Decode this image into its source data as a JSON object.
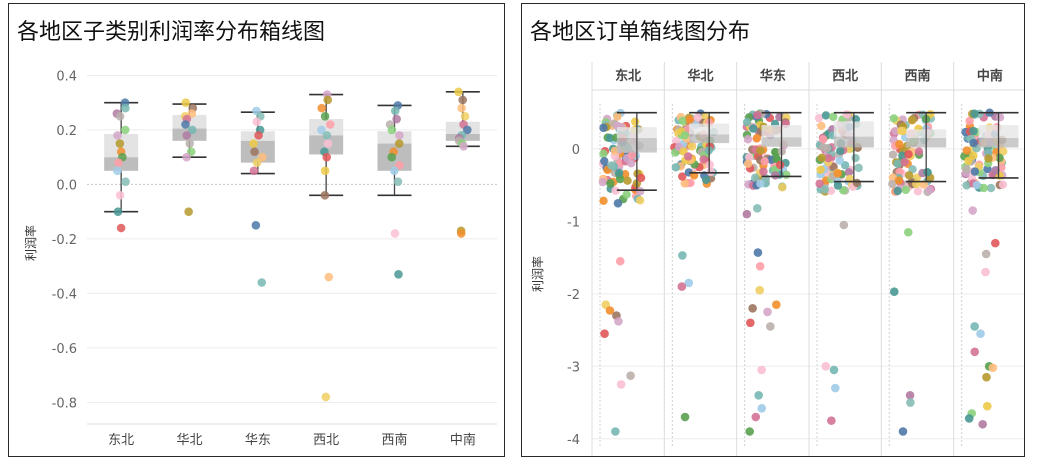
{
  "palette": [
    "#4e79a7",
    "#f28e2b",
    "#e15759",
    "#76b7b2",
    "#59a14f",
    "#edc948",
    "#b07aa1",
    "#ff9da7",
    "#9c755f",
    "#bab0ac",
    "#a0cbe8",
    "#ffbe7d",
    "#8cd17d",
    "#86bcb6",
    "#f1ce63",
    "#d4a6c8",
    "#fabfd2",
    "#d37295",
    "#b6992d",
    "#499894"
  ],
  "chart_data": [
    {
      "type": "box",
      "title": "各地区子类别利润率分布箱线图",
      "ylabel": "利润率",
      "xlabel": "",
      "ylim": [
        -0.85,
        0.42
      ],
      "yticks": [
        0.4,
        0.2,
        0.0,
        -0.2,
        -0.4,
        -0.6,
        -0.8
      ],
      "ytick_labels": [
        "0.4",
        "0.2",
        "0.0",
        "-0.2",
        "-0.4",
        "-0.6",
        "-0.8"
      ],
      "categories": [
        "东北",
        "华北",
        "华东",
        "西北",
        "西南",
        "中南"
      ],
      "boxes": [
        {
          "whisker_low": -0.1,
          "q1": 0.05,
          "median": 0.1,
          "q3": 0.185,
          "whisker_high": 0.3
        },
        {
          "whisker_low": 0.1,
          "q1": 0.16,
          "median": 0.205,
          "q3": 0.255,
          "whisker_high": 0.295
        },
        {
          "whisker_low": 0.04,
          "q1": 0.08,
          "median": 0.16,
          "q3": 0.195,
          "whisker_high": 0.265
        },
        {
          "whisker_low": -0.04,
          "q1": 0.11,
          "median": 0.18,
          "q3": 0.24,
          "whisker_high": 0.33
        },
        {
          "whisker_low": -0.04,
          "q1": 0.05,
          "median": 0.15,
          "q3": 0.195,
          "whisker_high": 0.29
        },
        {
          "whisker_low": 0.14,
          "q1": 0.16,
          "median": 0.185,
          "q3": 0.23,
          "whisker_high": 0.34
        }
      ],
      "points": [
        [
          0.3,
          0.28,
          0.26,
          0.25,
          0.2,
          0.18,
          0.15,
          0.12,
          0.1,
          0.08,
          0.05,
          0.01,
          -0.04,
          -0.1,
          -0.16
        ],
        [
          0.3,
          0.28,
          0.26,
          0.25,
          0.24,
          0.22,
          0.2,
          0.18,
          0.15,
          0.12,
          0.1,
          -0.1
        ],
        [
          0.27,
          0.25,
          0.23,
          0.2,
          0.18,
          0.15,
          0.12,
          0.1,
          0.08,
          0.05,
          -0.15,
          -0.36
        ],
        [
          0.33,
          0.31,
          0.28,
          0.25,
          0.22,
          0.2,
          0.18,
          0.15,
          0.12,
          0.1,
          0.05,
          -0.04,
          -0.34,
          -0.78
        ],
        [
          0.29,
          0.27,
          0.24,
          0.22,
          0.2,
          0.18,
          0.15,
          0.12,
          0.1,
          0.07,
          0.05,
          0.01,
          -0.18,
          -0.33
        ],
        [
          0.34,
          0.31,
          0.28,
          0.25,
          0.22,
          0.2,
          0.18,
          0.17,
          0.16,
          0.15,
          0.14,
          -0.17,
          -0.18
        ]
      ]
    },
    {
      "type": "box",
      "title": "各地区订单箱线图分布",
      "ylabel": "利润率",
      "xlabel": "",
      "ylim": [
        -4.1,
        0.62
      ],
      "yticks": [
        0,
        -1,
        -2,
        -3,
        -4
      ],
      "ytick_labels": [
        "0",
        "-1",
        "-2",
        "-3",
        "-4"
      ],
      "categories": [
        "东北",
        "华北",
        "华东",
        "西北",
        "西南",
        "中南"
      ],
      "boxes": [
        {
          "whisker_low": -0.57,
          "q1": -0.05,
          "median": 0.15,
          "q3": 0.3,
          "whisker_high": 0.5
        },
        {
          "whisker_low": -0.33,
          "q1": 0.08,
          "median": 0.2,
          "q3": 0.35,
          "whisker_high": 0.5
        },
        {
          "whisker_low": -0.38,
          "q1": 0.03,
          "median": 0.16,
          "q3": 0.33,
          "whisker_high": 0.5
        },
        {
          "whisker_low": -0.45,
          "q1": 0.02,
          "median": 0.17,
          "q3": 0.38,
          "whisker_high": 0.5
        },
        {
          "whisker_low": -0.45,
          "q1": 0.02,
          "median": 0.15,
          "q3": 0.27,
          "whisker_high": 0.5
        },
        {
          "whisker_low": -0.4,
          "q1": 0.02,
          "median": 0.15,
          "q3": 0.33,
          "whisker_high": 0.5
        }
      ],
      "outliers": [
        [
          -0.75,
          -1.55,
          -2.15,
          -2.23,
          -2.3,
          -2.38,
          -2.55,
          -3.13,
          -3.25,
          -3.9
        ],
        [
          -1.47,
          -1.85,
          -1.9,
          -3.7
        ],
        [
          -0.9,
          -0.82,
          -1.43,
          -1.62,
          -1.95,
          -2.15,
          -2.2,
          -2.25,
          -2.4,
          -2.45,
          -3.05,
          -3.4,
          -3.58,
          -3.7,
          -3.9
        ],
        [
          -1.05,
          -3.0,
          -3.05,
          -3.3,
          -3.75
        ],
        [
          -1.15,
          -1.97,
          -3.4,
          -3.5,
          -3.9
        ],
        [
          -0.85,
          -1.3,
          -1.45,
          -1.7,
          -2.45,
          -2.55,
          -2.8,
          -3.0,
          -3.02,
          -3.15,
          -3.55,
          -3.65,
          -3.72,
          -3.8
        ]
      ]
    }
  ]
}
